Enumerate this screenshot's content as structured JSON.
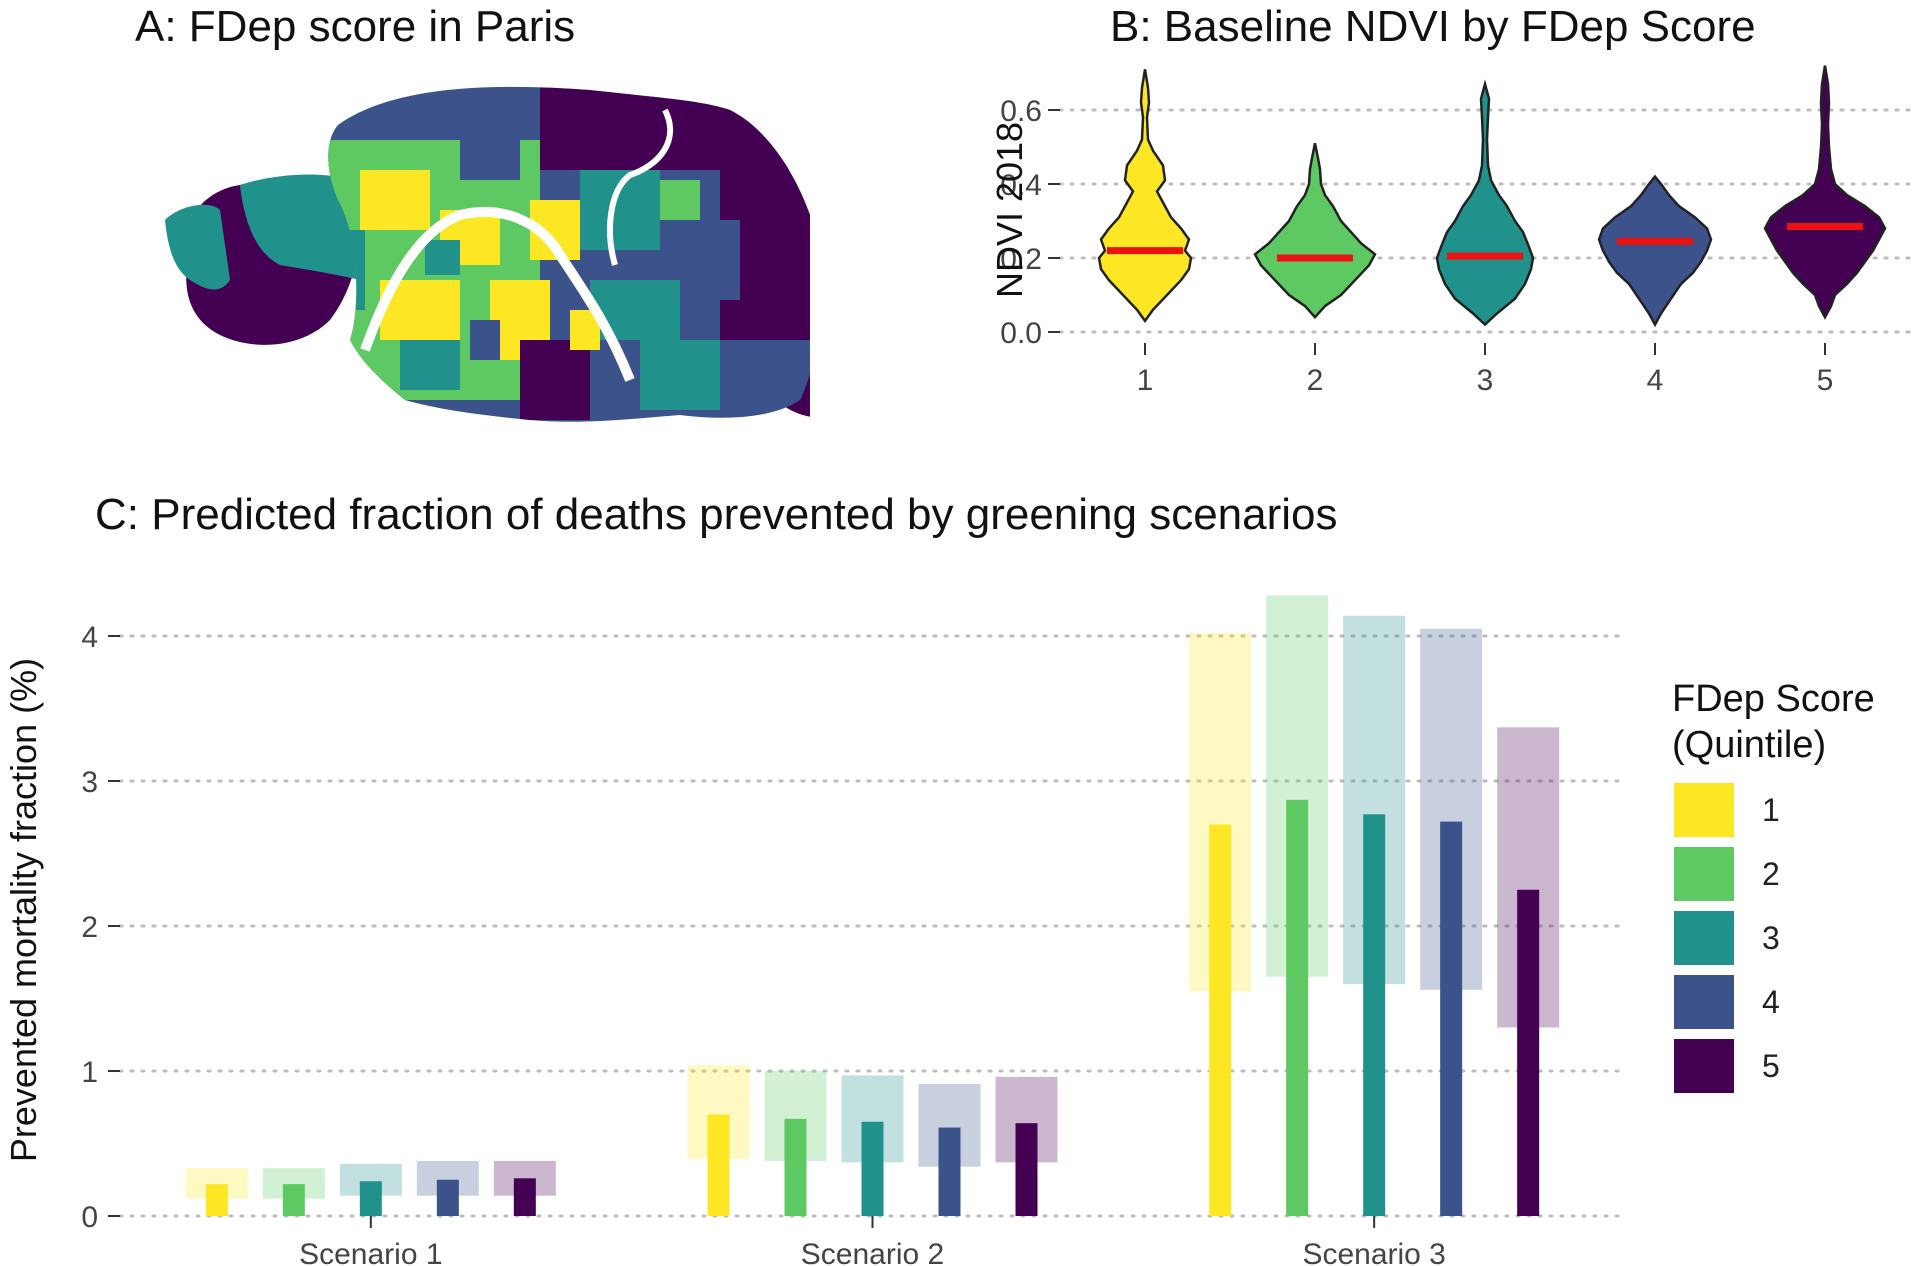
{
  "panels": {
    "a_title": "A: FDep score in Paris",
    "b_title": "B: Baseline NDVI by FDep Score",
    "c_title": "C: Predicted fraction of deaths prevented by greening scenarios"
  },
  "colors": {
    "q1": "#FDE725",
    "q2": "#5EC962",
    "q3": "#21918C",
    "q4": "#3B528B",
    "q5": "#440154",
    "median": "#EE1111",
    "grid": "#BDBDBD"
  },
  "legend": {
    "title_line1": "FDep Score",
    "title_line2": "(Quintile)",
    "items": [
      {
        "label": "1",
        "color": "#FDE725"
      },
      {
        "label": "2",
        "color": "#5EC962"
      },
      {
        "label": "3",
        "color": "#21918C"
      },
      {
        "label": "4",
        "color": "#3B528B"
      },
      {
        "label": "5",
        "color": "#440154"
      }
    ]
  },
  "chart_data": [
    {
      "type": "violin",
      "title": "B: Baseline NDVI by FDep Score",
      "ylabel": "NDVI 2018",
      "xlabel": "",
      "ylim": [
        0,
        0.7
      ],
      "yticks": [
        0.0,
        0.2,
        0.4,
        0.6
      ],
      "ytick_labels": [
        "0.0",
        "0.2",
        "0.4",
        "0.6"
      ],
      "grid": "horizontal-dotted",
      "categories": [
        "1",
        "2",
        "3",
        "4",
        "5"
      ],
      "medians": [
        0.22,
        0.2,
        0.205,
        0.245,
        0.285
      ],
      "ranges": [
        [
          0.03,
          0.71
        ],
        [
          0.04,
          0.51
        ],
        [
          0.02,
          0.67
        ],
        [
          0.02,
          0.42
        ],
        [
          0.04,
          0.72
        ]
      ]
    },
    {
      "type": "bar",
      "title": "C: Predicted fraction of deaths prevented by greening scenarios",
      "xlabel": "",
      "ylabel": "Prevented mortality fraction (%)",
      "ylim": [
        0,
        4.35
      ],
      "yticks": [
        0,
        1,
        2,
        3,
        4
      ],
      "grid": "horizontal-dotted",
      "legend_title": "FDep Score (Quintile)",
      "legend_position": "right",
      "categories": [
        "Scenario 1",
        "Scenario 2",
        "Scenario 3"
      ],
      "series": [
        {
          "name": "1",
          "values": [
            0.22,
            0.7,
            2.7
          ],
          "ci_low": [
            0.12,
            0.39,
            1.55
          ],
          "ci_high": [
            0.33,
            1.04,
            4.02
          ]
        },
        {
          "name": "2",
          "values": [
            0.22,
            0.67,
            2.87
          ],
          "ci_low": [
            0.12,
            0.38,
            1.65
          ],
          "ci_high": [
            0.33,
            1.0,
            4.28
          ]
        },
        {
          "name": "3",
          "values": [
            0.24,
            0.65,
            2.77
          ],
          "ci_low": [
            0.14,
            0.37,
            1.6
          ],
          "ci_high": [
            0.36,
            0.97,
            4.14
          ]
        },
        {
          "name": "4",
          "values": [
            0.25,
            0.61,
            2.72
          ],
          "ci_low": [
            0.14,
            0.34,
            1.56
          ],
          "ci_high": [
            0.38,
            0.91,
            4.05
          ]
        },
        {
          "name": "5",
          "values": [
            0.26,
            0.64,
            2.25
          ],
          "ci_low": [
            0.14,
            0.37,
            1.3
          ],
          "ci_high": [
            0.38,
            0.96,
            3.37
          ]
        }
      ]
    }
  ]
}
